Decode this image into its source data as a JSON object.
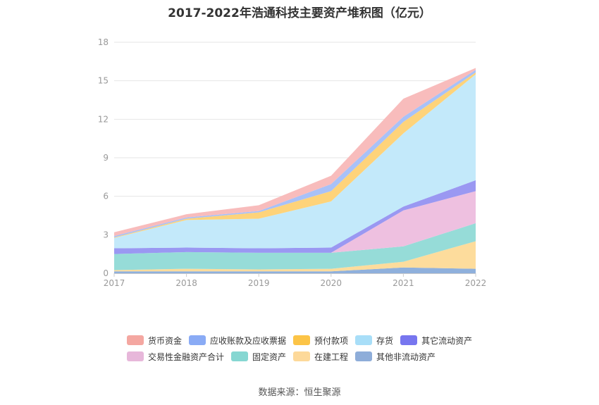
{
  "title": "2017-2022年浩通科技主要资产堆积图（亿元）",
  "source": "数据来源：恒生聚源",
  "chart_data": {
    "type": "area",
    "stacked": true,
    "categories": [
      "2017",
      "2018",
      "2019",
      "2020",
      "2021",
      "2022"
    ],
    "y_ticks": [
      "0",
      "3",
      "6",
      "9",
      "12",
      "15",
      "18"
    ],
    "ylim": [
      0,
      18
    ],
    "grid": true,
    "legend_position": "bottom",
    "series": [
      {
        "name": "其他非流动资产",
        "color": "#8fb0dc",
        "values": [
          0.15,
          0.15,
          0.15,
          0.15,
          0.45,
          0.35
        ]
      },
      {
        "name": "在建工程",
        "color": "#fddc9c",
        "values": [
          0.1,
          0.2,
          0.15,
          0.2,
          0.45,
          2.15
        ]
      },
      {
        "name": "固定资产",
        "color": "#96dcd8",
        "values": [
          1.25,
          1.3,
          1.3,
          1.25,
          1.2,
          1.4
        ]
      },
      {
        "name": "交易性金融资产合计",
        "color": "#eec0e0",
        "values": [
          0,
          0,
          0,
          0,
          2.8,
          2.5
        ]
      },
      {
        "name": "其它流动资产",
        "color": "#9a98f2",
        "values": [
          0.45,
          0.35,
          0.35,
          0.4,
          0.3,
          0.85
        ]
      },
      {
        "name": "存货",
        "color": "#c3e9fa",
        "values": [
          0.8,
          2.15,
          2.3,
          3.6,
          5.7,
          8.25
        ]
      },
      {
        "name": "预付款项",
        "color": "#fed37a",
        "values": [
          0.05,
          0.1,
          0.5,
          0.8,
          0.9,
          0.15
        ]
      },
      {
        "name": "应收账款及应收票据",
        "color": "#a8c1f8",
        "values": [
          0.1,
          0.1,
          0.1,
          0.55,
          0.4,
          0.2
        ]
      },
      {
        "name": "货币资金",
        "color": "#f8bcbc",
        "values": [
          0.3,
          0.25,
          0.45,
          0.65,
          1.4,
          0.15
        ]
      }
    ]
  },
  "legend": {
    "row1": [
      {
        "name": "货币资金",
        "color": "#f4a7a1"
      },
      {
        "name": "应收账款及应收票据",
        "color": "#8aabf5"
      },
      {
        "name": "预付款项",
        "color": "#fcc447"
      },
      {
        "name": "存货",
        "color": "#a8def8"
      },
      {
        "name": "其它流动资产",
        "color": "#7776ef"
      }
    ],
    "row2": [
      {
        "name": "交易性金融资产合计",
        "color": "#e7b7da"
      },
      {
        "name": "固定资产",
        "color": "#86d7d2"
      },
      {
        "name": "在建工程",
        "color": "#fdd99a"
      },
      {
        "name": "其他非流动资产",
        "color": "#8eadd9"
      }
    ]
  }
}
